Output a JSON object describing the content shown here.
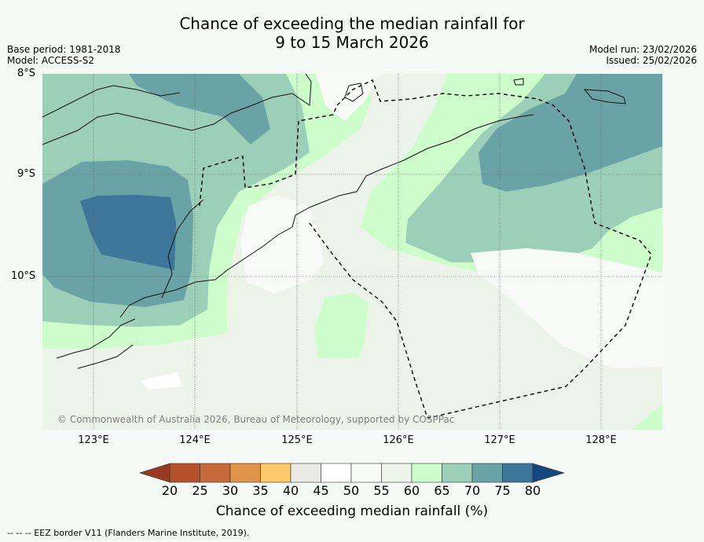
{
  "title": {
    "line1": "Chance of exceeding the median rainfall for",
    "line2": "9 to 15 March 2026"
  },
  "meta_left": {
    "base_period": "Base period: 1981-2018",
    "model": "Model: ACCESS-S2"
  },
  "meta_right": {
    "model_run": "Model run: 23/02/2026",
    "issued": "Issued: 25/02/2026"
  },
  "map": {
    "lat_labels": [
      "8°S",
      "9°S",
      "10°S"
    ],
    "lon_labels": [
      "123°E",
      "124°E",
      "125°E",
      "126°E",
      "127°E",
      "128°E"
    ],
    "copyright": "© Commonwealth of Australia 2026, Bureau of Meteorology, supported by COSPPac"
  },
  "colorbar": {
    "ticks": [
      "20",
      "25",
      "30",
      "35",
      "40",
      "45",
      "50",
      "55",
      "60",
      "65",
      "70",
      "75",
      "80"
    ],
    "colors": [
      "#b5522a",
      "#c8693a",
      "#e09448",
      "#fdc96a",
      "#e9e9e5",
      "#ffffff",
      "#f7faf6",
      "#ecf4ea",
      "#ccfdcb",
      "#9ccfb8",
      "#69a3a5",
      "#3d7698"
    ],
    "low_end_color": "#963b22",
    "high_end_color": "#14477e",
    "label": "Chance of exceeding median rainfall (%)"
  },
  "footer": "--  --  -- EEZ border V11 (Flanders Marine Institute, 2019).",
  "chart_data": {
    "type": "heatmap",
    "title": "Chance of exceeding the median rainfall for 9 to 15 March 2026",
    "variable": "Chance of exceeding median rainfall (%)",
    "lon_range": [
      122.5,
      128.6
    ],
    "lat_range": [
      -11.5,
      -8.0
    ],
    "color_levels": [
      20,
      25,
      30,
      35,
      40,
      45,
      50,
      55,
      60,
      65,
      70,
      75,
      80
    ]
  }
}
